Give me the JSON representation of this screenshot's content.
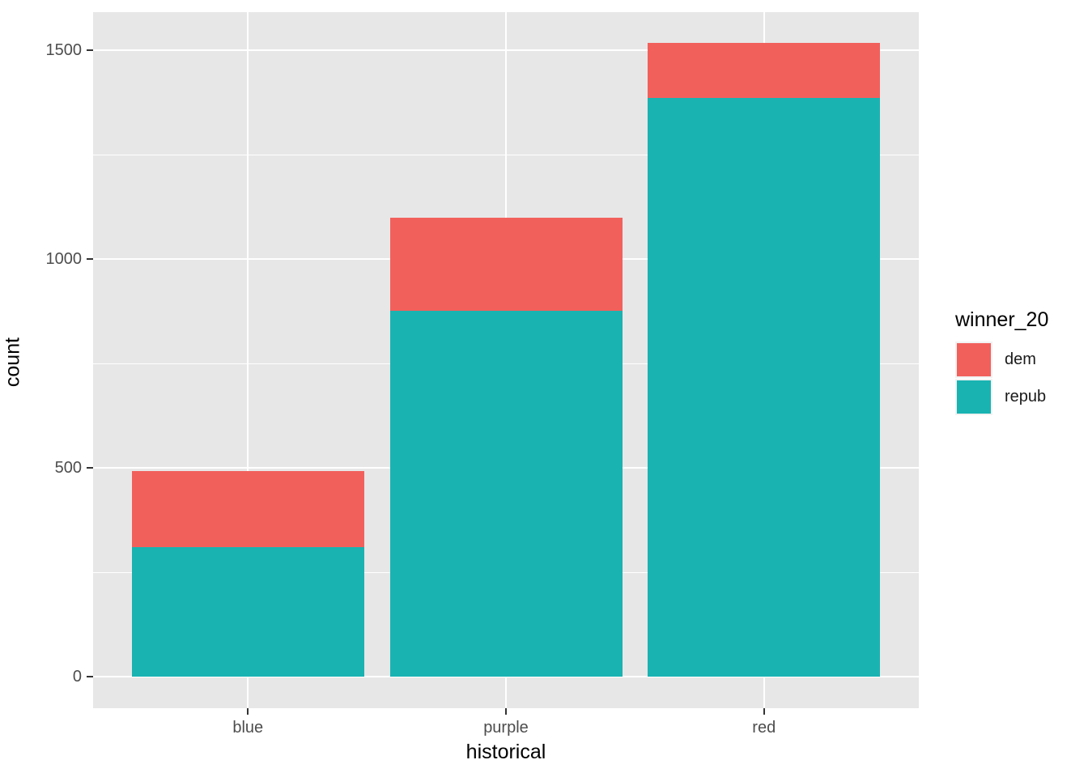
{
  "chart_data": {
    "type": "bar",
    "stacked": true,
    "title": "",
    "xlabel": "historical",
    "ylabel": "count",
    "categories": [
      "blue",
      "purple",
      "red"
    ],
    "series": [
      {
        "name": "dem",
        "color": "#F2605C",
        "values": [
          182,
          223,
          132
        ]
      },
      {
        "name": "repub",
        "color": "#19B3B2",
        "values": [
          310,
          876,
          1386
        ]
      }
    ],
    "stack_order_bottom_to_top": [
      "repub",
      "dem"
    ],
    "totals": [
      492,
      1099,
      1518
    ],
    "yticks": [
      0,
      500,
      1000,
      1500
    ],
    "ytick_labels": [
      "0",
      "500",
      "1000",
      "1500"
    ],
    "yminor": [
      250,
      750,
      1250
    ],
    "ylim": [
      0,
      1593
    ],
    "legend_title": "winner_20",
    "legend_position": "right",
    "grid": "white major and minor horizontal lines, white major vertical lines at category centers",
    "panel_background_color": "#E7E7E7",
    "tick_label_color": "#4D4D4D"
  }
}
